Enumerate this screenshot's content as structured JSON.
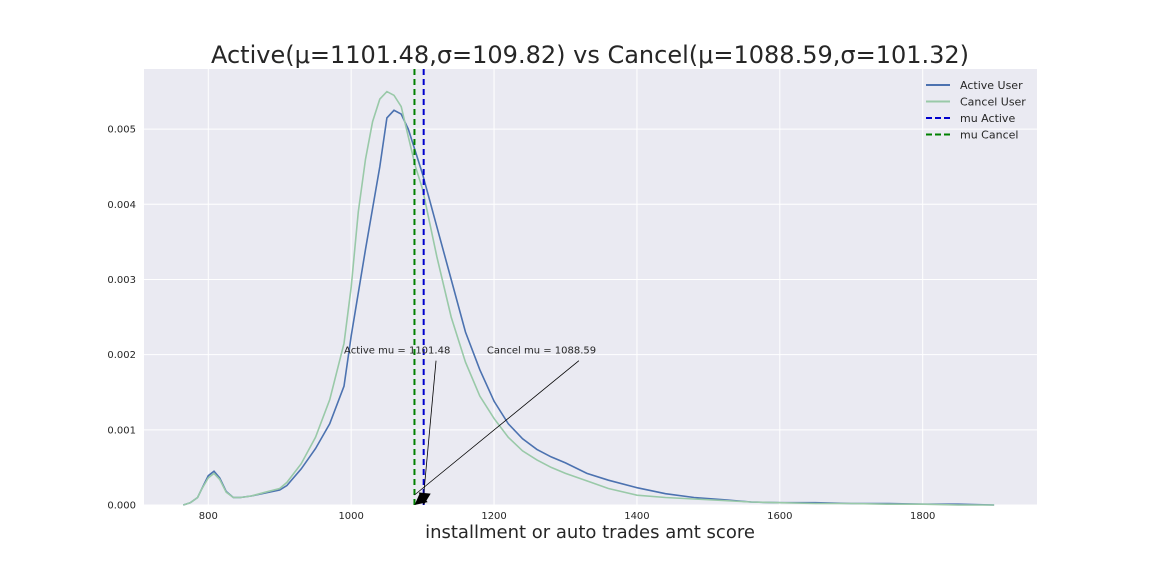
{
  "chart_data": {
    "type": "line",
    "title": "Active(μ=1101.48,σ=109.82) vs Cancel(μ=1088.59,σ=101.32)",
    "xlabel": "installment or auto trades amt score",
    "ylabel": "",
    "xlim": [
      710,
      1960
    ],
    "ylim": [
      0,
      0.0058
    ],
    "xticks": [
      800,
      1000,
      1200,
      1400,
      1600,
      1800
    ],
    "yticks": [
      "0.000",
      "0.001",
      "0.002",
      "0.003",
      "0.004",
      "0.005"
    ],
    "grid": true,
    "legend_position": "top-right",
    "series": [
      {
        "name": "Active User",
        "color": "#4c72b0",
        "x": [
          765,
          775,
          785,
          790,
          800,
          808,
          816,
          825,
          835,
          845,
          860,
          880,
          900,
          910,
          930,
          950,
          970,
          990,
          1000,
          1020,
          1040,
          1050,
          1060,
          1070,
          1080,
          1090,
          1100,
          1120,
          1140,
          1160,
          1180,
          1200,
          1220,
          1240,
          1260,
          1280,
          1300,
          1330,
          1360,
          1400,
          1440,
          1480,
          1520,
          1560,
          1600,
          1650,
          1700,
          1750,
          1800,
          1850,
          1900
        ],
        "y": [
          0.0,
          3e-05,
          0.0001,
          0.0002,
          0.00039,
          0.00045,
          0.00036,
          0.00018,
          0.0001,
          0.0001,
          0.00012,
          0.00016,
          0.0002,
          0.00026,
          0.00048,
          0.00075,
          0.00108,
          0.00158,
          0.00225,
          0.0034,
          0.0045,
          0.00515,
          0.00525,
          0.0052,
          0.005,
          0.0047,
          0.0044,
          0.0037,
          0.003,
          0.0023,
          0.0018,
          0.00138,
          0.00108,
          0.00088,
          0.00074,
          0.00064,
          0.00056,
          0.00042,
          0.00033,
          0.00023,
          0.00015,
          0.0001,
          7e-05,
          4e-05,
          3e-05,
          3e-05,
          2e-05,
          2e-05,
          1e-05,
          1e-05,
          0.0
        ]
      },
      {
        "name": "Cancel User",
        "color": "#99c9a8",
        "x": [
          765,
          775,
          785,
          790,
          800,
          808,
          816,
          825,
          835,
          845,
          860,
          880,
          900,
          910,
          930,
          950,
          970,
          990,
          1000,
          1010,
          1020,
          1030,
          1040,
          1050,
          1060,
          1070,
          1080,
          1090,
          1100,
          1120,
          1140,
          1160,
          1180,
          1200,
          1220,
          1240,
          1260,
          1280,
          1300,
          1330,
          1360,
          1400,
          1440,
          1480,
          1520,
          1560,
          1600,
          1650,
          1700,
          1750,
          1800,
          1850,
          1900
        ],
        "y": [
          0.0,
          3e-05,
          0.0001,
          0.0002,
          0.00036,
          0.00042,
          0.00034,
          0.00017,
          0.0001,
          0.0001,
          0.00012,
          0.00017,
          0.00022,
          0.0003,
          0.00055,
          0.0009,
          0.0014,
          0.00215,
          0.0029,
          0.0039,
          0.0046,
          0.0051,
          0.0054,
          0.0055,
          0.00545,
          0.0053,
          0.0049,
          0.0045,
          0.0042,
          0.0033,
          0.0025,
          0.0019,
          0.00145,
          0.00115,
          0.0009,
          0.00072,
          0.0006,
          0.0005,
          0.00042,
          0.00032,
          0.00022,
          0.00013,
          0.0001,
          8e-05,
          6e-05,
          4e-05,
          3e-05,
          2e-05,
          2e-05,
          1e-05,
          1e-05,
          0.0,
          0.0
        ]
      }
    ],
    "mean_lines": [
      {
        "name": "mu Active",
        "x": 1101.48,
        "color": "#0000cc"
      },
      {
        "name": "mu Cancel",
        "x": 1088.59,
        "color": "#008000"
      }
    ],
    "annotations": [
      {
        "text": "Active mu = 1101.48",
        "text_x": 990,
        "text_y": 0.002,
        "arrow_x": 1101.48,
        "arrow_y": 0.0
      },
      {
        "text": "Cancel mu = 1088.59",
        "text_x": 1190,
        "text_y": 0.002,
        "arrow_x": 1088.59,
        "arrow_y": 0.0
      }
    ],
    "legend": [
      "Active User",
      "Cancel User",
      "mu Active",
      "mu Cancel"
    ]
  }
}
